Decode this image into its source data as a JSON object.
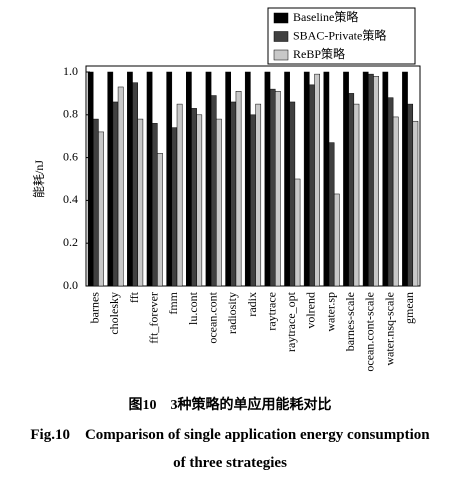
{
  "chart_data": {
    "type": "bar",
    "title": "图10　3种策略的单应用能耗对比",
    "subtitle": "Fig.10　Comparison of single application energy consumption of three strategies",
    "ylabel": "能耗/nJ",
    "categories": [
      "barnes",
      "cholesky",
      "fft",
      "fft_forever",
      "fmm",
      "lu.cont",
      "ocean.cont",
      "radiosity",
      "radix",
      "raytrace",
      "raytrace_opt",
      "volrend",
      "water.sp",
      "barnes-scale",
      "ocean.cont-scale",
      "water.nsq-scale",
      "gmean"
    ],
    "series": [
      {
        "name": "Baseline策略",
        "color": "#000000",
        "values": [
          1,
          1,
          1,
          1,
          1,
          1,
          1,
          1,
          1,
          1,
          1,
          1,
          1,
          1,
          1,
          1,
          1
        ]
      },
      {
        "name": "SBAC-Private策略",
        "color": "#404040",
        "values": [
          0.78,
          0.86,
          0.95,
          0.76,
          0.74,
          0.83,
          0.89,
          0.86,
          0.8,
          0.92,
          0.86,
          0.94,
          0.67,
          0.9,
          0.99,
          0.88,
          0.85
        ]
      },
      {
        "name": "ReBP策略",
        "color": "#c8c8c8",
        "values": [
          0.72,
          0.93,
          0.78,
          0.62,
          0.85,
          0.8,
          0.78,
          0.91,
          0.85,
          0.91,
          0.5,
          0.99,
          0.43,
          0.85,
          0.98,
          0.79,
          0.77
        ]
      }
    ],
    "ylim": [
      0,
      1
    ],
    "yticks": [
      {
        "value": 0,
        "label": "0.0"
      },
      {
        "value": 0.2,
        "label": "0.2"
      },
      {
        "value": 0.4,
        "label": "0.4"
      },
      {
        "value": 0.6,
        "label": "0.6"
      },
      {
        "value": 0.8,
        "label": "0.8"
      },
      {
        "value": 1,
        "label": "1.0"
      }
    ],
    "legend": "top-right"
  }
}
